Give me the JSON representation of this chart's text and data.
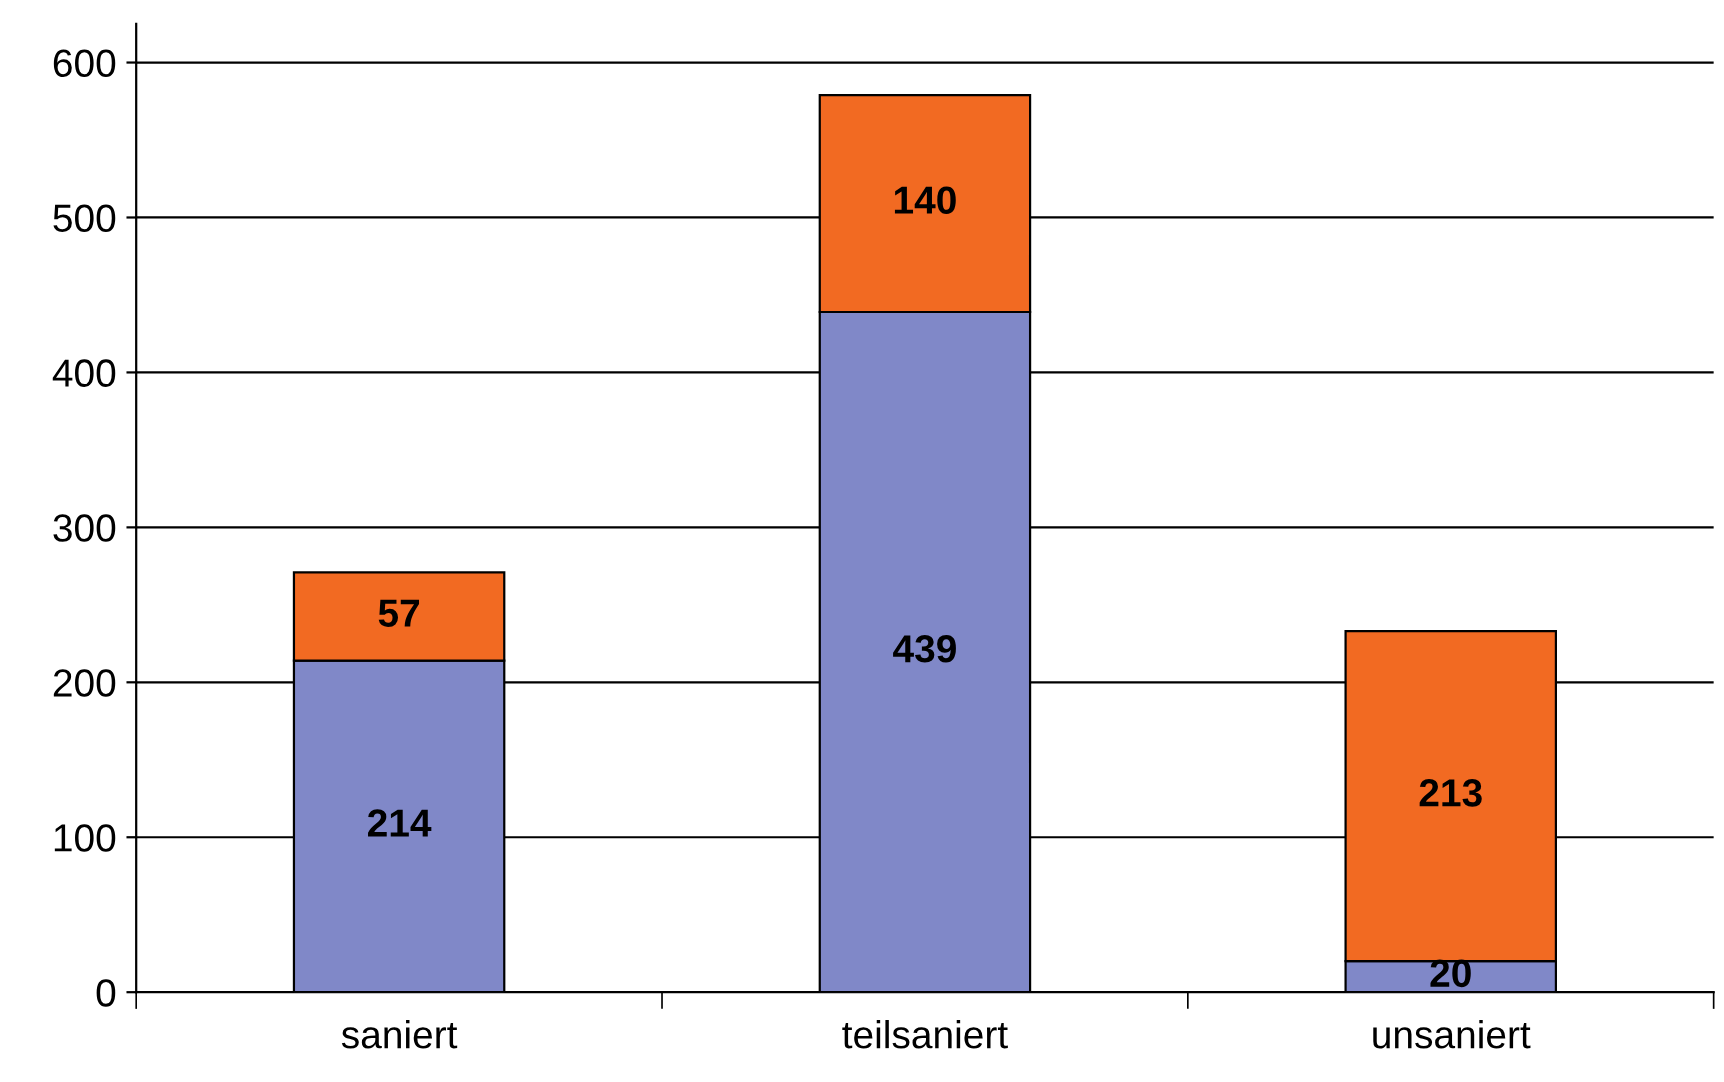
{
  "chart_data": {
    "type": "bar",
    "stacked": true,
    "categories": [
      "saniert",
      "teilsaniert",
      "unsaniert"
    ],
    "series": [
      {
        "color": "#8088c8",
        "values": [
          214,
          439,
          20
        ]
      },
      {
        "color": "#f26a22",
        "values": [
          57,
          140,
          213
        ]
      }
    ],
    "ylim": [
      0,
      625
    ],
    "yticks": [
      0,
      100,
      200,
      300,
      400,
      500,
      600
    ],
    "grid": "y",
    "data_labels": true
  }
}
